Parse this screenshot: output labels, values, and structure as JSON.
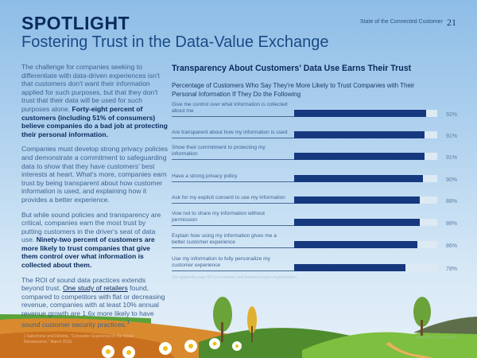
{
  "header": {
    "running_title": "State of the Connected Customer",
    "page_number": "21"
  },
  "kicker": "SPOTLIGHT",
  "title": "Fostering Trust in the Data-Value Exchange",
  "body": {
    "p1": "The challenge for companies seeking to differentiate with data-driven experiences isn't that customers don't want their information applied for such purposes, but that they don't trust that their data will be used for such purposes alone.",
    "p1_bold": "Forty-eight percent of customers (including 51% of consumers) believe companies do a bad job at protecting their personal information.",
    "p2": "Companies must develop strong privacy policies and demonstrate a commitment to safeguarding data to show that they have customers' best interests at heart. What's more, companies earn trust by being transparent about how customer information is used, and explaining how it provides a better experience.",
    "p3": "But while sound policies and transparency are critical, companies earn the most trust by putting customers in the driver's seat of data use.",
    "p3_bold": "Ninety-two percent of customers are more likely to trust companies that give them control over what information is collected about them.",
    "p4_a": "The ROI of sound data practices extends beyond trust.",
    "p4_link": "One study of retailers",
    "p4_b": "found, compared to competitors with flat or decreasing revenue, companies with at least 10% annual revenue growth are 1.6x more likely to have sound customer security practices.",
    "p4_sup": "1"
  },
  "chart_data": {
    "type": "bar",
    "orientation": "horizontal",
    "title": "Transparency About Customers' Data Use Earns Their Trust",
    "subtitle": "Percentage of Customers Who Say They're More Likely to Trust Companies with Their Personal Information If They Do the Following",
    "xlim": [
      0,
      100
    ],
    "bar_color": "#15387e",
    "categories": [
      "Give me control over what information is collected about me",
      "Are transparent about how my information is used",
      "Show their commitment to protecting my information",
      "Have a strong privacy policy",
      "Ask for my explicit consent to use my information",
      "Vow not to share my information without permission",
      "Explain how using my information gives me a better customer experience",
      "Use my information to fully personalize my customer experience"
    ],
    "values": [
      92,
      91,
      91,
      90,
      88,
      88,
      86,
      78
    ],
    "labels": [
      "92%",
      "91%",
      "91%",
      "90%",
      "88%",
      "88%",
      "86%",
      "78%"
    ],
    "note": "See appendix page 58 for consumer and business buyer segmentation."
  },
  "footnote": "1 Salesforce and Deloitte, \"Consumer Experience in the Retail Renaissance,\" March 2018.",
  "brand": "salesforce research"
}
